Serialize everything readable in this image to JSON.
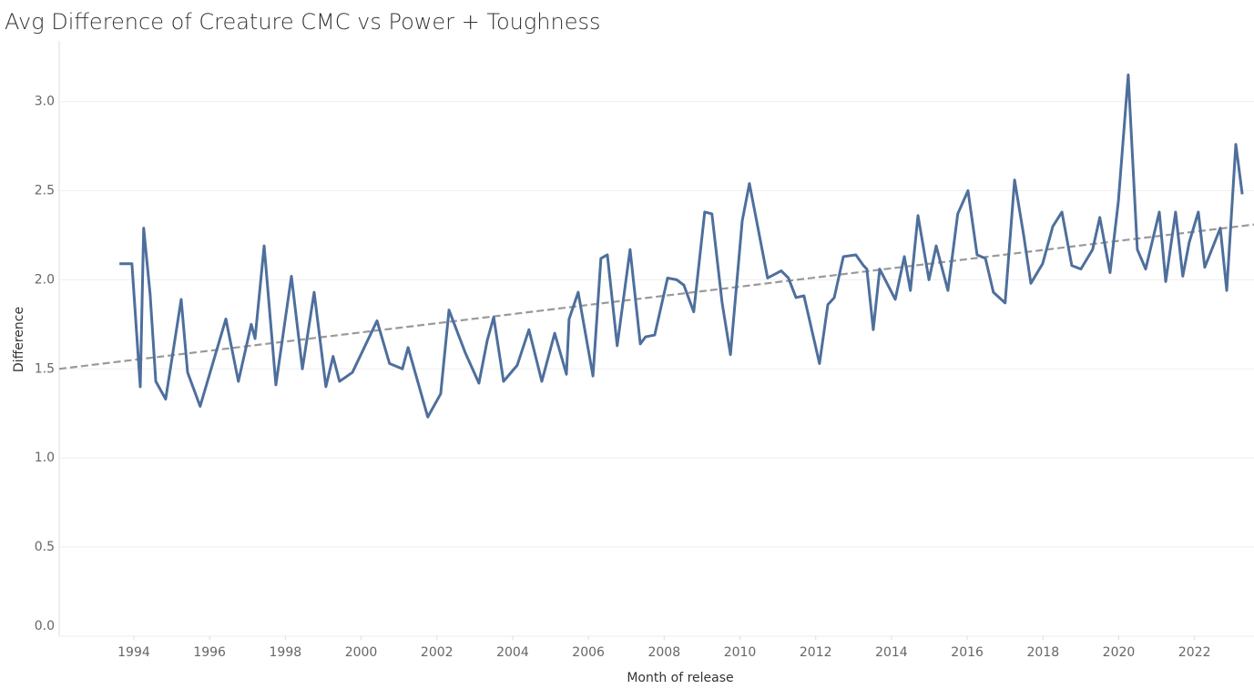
{
  "chart_data": {
    "type": "line",
    "title": "Avg Difference of Creature CMC vs Power + Toughness",
    "x_label": "Month of release",
    "y_label": "Difference",
    "xlim": [
      1992.03,
      2023.57
    ],
    "ylim": [
      0,
      3.34
    ],
    "xticks": [
      1994,
      1996,
      1998,
      2000,
      2002,
      2004,
      2006,
      2008,
      2010,
      2012,
      2014,
      2016,
      2018,
      2020,
      2022
    ],
    "yticks": [
      {
        "value": 0,
        "label": "0.0"
      },
      0.5,
      {
        "value": 1,
        "label": "1.0"
      },
      1.5,
      {
        "value": 2,
        "label": "2.0"
      },
      2.5,
      {
        "value": 3,
        "label": "3.0"
      }
    ],
    "grid": true,
    "x": [
      1993.62,
      1993.81,
      1993.95,
      1994.17,
      1994.26,
      1994.43,
      1994.58,
      1994.84,
      1995.25,
      1995.42,
      1995.75,
      1996.43,
      1996.76,
      1997.1,
      1997.2,
      1997.44,
      1997.75,
      1998.16,
      1998.45,
      1998.76,
      1999.07,
      1999.26,
      1999.43,
      1999.77,
      2000.42,
      2000.75,
      2001.09,
      2001.24,
      2001.76,
      2002.1,
      2002.32,
      2002.75,
      2003.11,
      2003.33,
      2003.5,
      2003.76,
      2004.12,
      2004.43,
      2004.77,
      2005.11,
      2005.42,
      2005.49,
      2005.73,
      2006.12,
      2006.33,
      2006.5,
      2006.76,
      2007.1,
      2007.37,
      2007.51,
      2007.75,
      2008.09,
      2008.33,
      2008.52,
      2008.78,
      2009.07,
      2009.26,
      2009.53,
      2009.75,
      2010.06,
      2010.25,
      2010.73,
      2011.09,
      2011.28,
      2011.48,
      2011.69,
      2012.1,
      2012.32,
      2012.49,
      2012.73,
      2013.06,
      2013.26,
      2013.35,
      2013.52,
      2013.69,
      2014.1,
      2014.34,
      2014.5,
      2014.7,
      2014.99,
      2015.18,
      2015.49,
      2015.75,
      2016.02,
      2016.26,
      2016.48,
      2016.69,
      2017.0,
      2017.25,
      2017.49,
      2017.68,
      2017.99,
      2018.26,
      2018.5,
      2018.76,
      2019.0,
      2019.31,
      2019.5,
      2019.77,
      2019.99,
      2020.25,
      2020.49,
      2020.71,
      2021.07,
      2021.24,
      2021.5,
      2021.69,
      2021.86,
      2022.1,
      2022.27,
      2022.68,
      2022.85,
      2023.09,
      2023.26
    ],
    "series": [
      {
        "color": "#4e6f9c",
        "values": [
          2.09,
          2.09,
          2.09,
          1.4,
          2.29,
          1.92,
          1.43,
          1.33,
          1.89,
          1.48,
          1.29,
          1.78,
          1.43,
          1.75,
          1.67,
          2.19,
          1.41,
          2.02,
          1.5,
          1.93,
          1.4,
          1.57,
          1.43,
          1.48,
          1.77,
          1.53,
          1.5,
          1.62,
          1.23,
          1.36,
          1.83,
          1.59,
          1.42,
          1.66,
          1.79,
          1.43,
          1.52,
          1.72,
          1.43,
          1.7,
          1.47,
          1.78,
          1.93,
          1.46,
          2.12,
          2.14,
          1.63,
          2.17,
          1.64,
          1.68,
          1.69,
          2.01,
          2.0,
          1.97,
          1.82,
          2.38,
          2.37,
          1.87,
          1.58,
          2.33,
          2.54,
          2.01,
          2.05,
          2.01,
          1.9,
          1.91,
          1.53,
          1.86,
          1.9,
          2.13,
          2.14,
          2.08,
          2.06,
          1.72,
          2.06,
          1.89,
          2.13,
          1.94,
          2.36,
          2.0,
          2.19,
          1.94,
          2.37,
          2.5,
          2.14,
          2.12,
          1.93,
          1.87,
          2.56,
          2.25,
          1.98,
          2.09,
          2.3,
          2.38,
          2.08,
          2.06,
          2.17,
          2.35,
          2.04,
          2.44,
          3.15,
          2.17,
          2.06,
          2.38,
          1.99,
          2.38,
          2.02,
          2.21,
          2.38,
          2.07,
          2.29,
          1.94,
          2.76,
          2.48
        ]
      }
    ],
    "trend": {
      "x": [
        1992.03,
        2023.57
      ],
      "values": [
        1.5,
        2.31
      ],
      "color": "#999999",
      "dashed": true
    }
  }
}
